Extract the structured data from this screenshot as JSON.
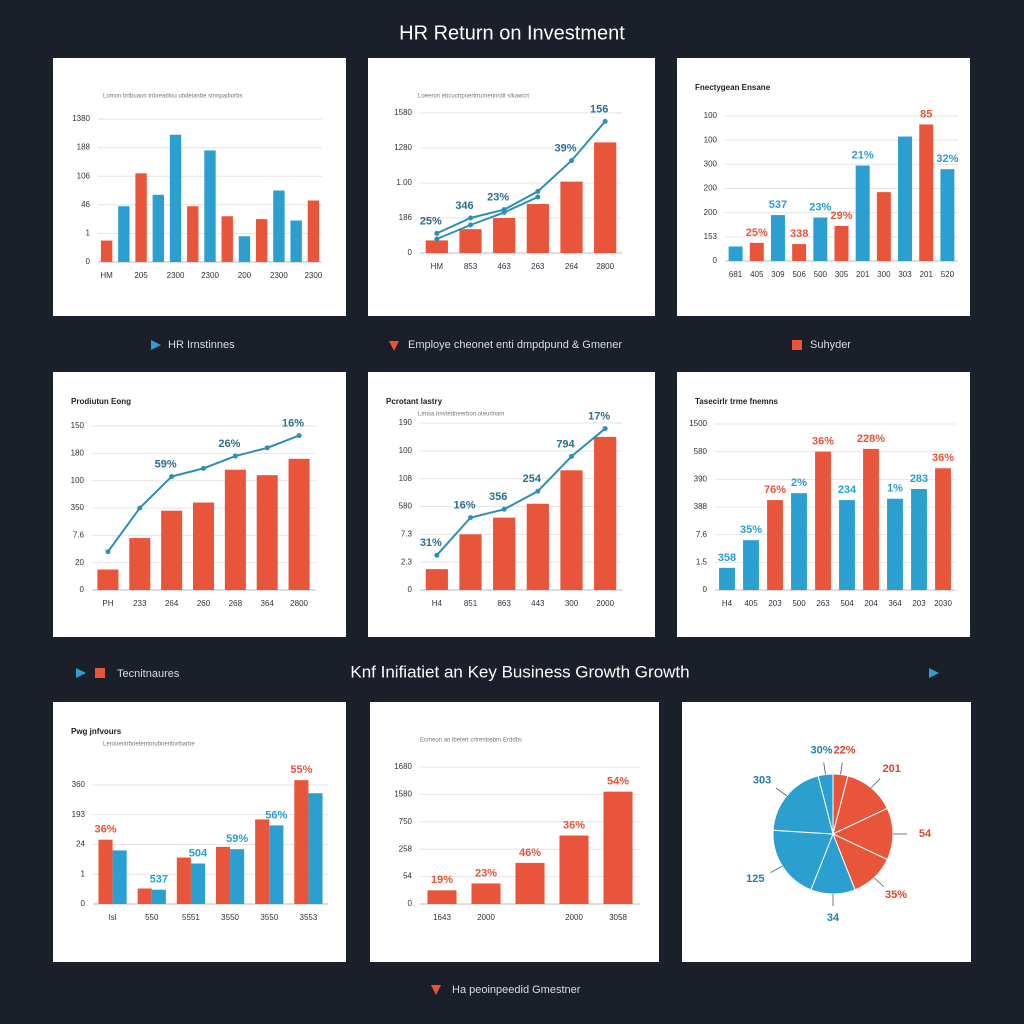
{
  "page": {
    "title": "HR Return on Investment",
    "section_title": "Knf Inifiatiet an Key Business Growth Growth",
    "captions": [
      "HR Irnstinnes",
      "Employe cheonet enti dmpdpund & Gmener",
      "Suhyder",
      "Tecnitnaures",
      "Ha peoinpeedid Gmestner"
    ]
  },
  "chart_data": [
    {
      "type": "bar",
      "subtitle": "Lomon brtbuaon tnbreadiou ubdelanbe stnnpadiorbs",
      "categories": [
        "HM",
        null,
        "205",
        null,
        "2300",
        null,
        "2300",
        null,
        "200",
        null,
        "2300",
        null,
        "2300"
      ],
      "series": [
        {
          "type": "bar",
          "colors": [
            "#e8553a",
            "#2a9fd0",
            "#e8553a",
            "#2a9fd0",
            "#2a9fd0",
            "#e8553a",
            "#2a9fd0",
            "#e8553a",
            "#2a9fd0",
            "#e8553a",
            "#2a9fd0",
            "#2a9fd0",
            "#e8553a"
          ],
          "values": [
            15,
            39,
            62,
            47,
            89,
            39,
            78,
            32,
            18,
            30,
            50,
            29,
            43
          ]
        }
      ],
      "ylim": [
        0,
        100
      ],
      "yticks": [
        0,
        {
          "value": 20,
          "label": "1"
        },
        {
          "value": 40,
          "label": "46"
        },
        {
          "value": 60,
          "label": "106"
        },
        {
          "value": 80,
          "label": "188"
        },
        {
          "value": 100,
          "label": "1380"
        }
      ],
      "grid": true
    },
    {
      "type": "bar",
      "subtitle": "Loeeron ebcuonpnertrrumennrdit slkawcrt",
      "categories": [
        "HM",
        "853",
        "463",
        "263",
        "264",
        "2800"
      ],
      "series": [
        {
          "type": "bar",
          "color": "#e8553a",
          "values": [
            9,
            17,
            25,
            35,
            51,
            79
          ]
        },
        {
          "type": "line",
          "color": "#2d8fb5",
          "values": [
            14,
            25,
            31,
            44,
            66,
            94
          ],
          "annotations": [
            "25%",
            "346",
            "23%",
            null,
            "39%",
            "156"
          ]
        },
        {
          "type": "line",
          "color": "#2d8fb5",
          "values": [
            10,
            20,
            29,
            40,
            null,
            null
          ]
        }
      ],
      "ylim": [
        0,
        110
      ],
      "yticks": [
        0,
        {
          "value": 25,
          "label": "186"
        },
        {
          "value": 50,
          "label": "1.00"
        },
        {
          "value": 75,
          "label": "1280"
        },
        {
          "value": 100,
          "label": "1580"
        }
      ],
      "grid": true
    },
    {
      "type": "bar",
      "title": "Fnectygean Ensane",
      "categories": [
        "681",
        "405",
        "309",
        "506",
        "500",
        "305",
        "201",
        "300",
        "303",
        "201",
        "520"
      ],
      "series": [
        {
          "type": "bar",
          "colors": [
            "#2a9fd0",
            "#e8553a",
            "#2a9fd0",
            "#e8553a",
            "#2a9fd0",
            "#e8553a",
            "#2a9fd0",
            "#e8553a",
            "#2a9fd0",
            "#e8553a",
            "#2a9fd0"
          ],
          "values": [
            12,
            15,
            38,
            14,
            36,
            29,
            79,
            57,
            103,
            113,
            76
          ],
          "annotations": [
            null,
            "25%",
            "537",
            "338",
            "23%",
            "29%",
            "21%",
            null,
            null,
            "85",
            "32%"
          ]
        }
      ],
      "ylim": [
        0,
        120
      ],
      "yticks": [
        0,
        {
          "value": 20,
          "label": "153"
        },
        {
          "value": 40,
          "label": "200"
        },
        {
          "value": 60,
          "label": "200"
        },
        {
          "value": 80,
          "label": "300"
        },
        {
          "value": 100,
          "label": "100"
        },
        {
          "value": 120,
          "label": "100"
        }
      ],
      "grid": true
    },
    {
      "type": "bar",
      "title": "Prodiutun Eong",
      "categories": [
        "PH",
        "233",
        "264",
        "260",
        "268",
        "364",
        "2800"
      ],
      "series": [
        {
          "type": "bar",
          "color": "#e8553a",
          "values": [
            15,
            38,
            58,
            64,
            88,
            84,
            96
          ]
        },
        {
          "type": "line",
          "color": "#2d8fb5",
          "values": [
            28,
            60,
            83,
            89,
            98,
            104,
            113
          ],
          "annotations": [
            null,
            null,
            "59%",
            null,
            "26%",
            null,
            "16%"
          ]
        }
      ],
      "ylim": [
        0,
        120
      ],
      "yticks": [
        0,
        20,
        {
          "value": 40,
          "label": "7.6"
        },
        {
          "value": 60,
          "label": "350"
        },
        {
          "value": 80,
          "label": "100"
        },
        {
          "value": 100,
          "label": "180"
        },
        {
          "value": 120,
          "label": "150"
        }
      ],
      "grid": true
    },
    {
      "type": "bar",
      "title": "Pcrotant lastry",
      "subtitle": "Lensa hnvtedneerbon oteurlnam",
      "categories": [
        "H4",
        "851",
        "863",
        "443",
        "300",
        "2000"
      ],
      "series": [
        {
          "type": "bar",
          "color": "#e8553a",
          "values": [
            15,
            40,
            52,
            62,
            86,
            110
          ]
        },
        {
          "type": "line",
          "color": "#2d8fb5",
          "values": [
            25,
            52,
            58,
            71,
            96,
            116
          ],
          "annotations": [
            "31%",
            "16%",
            "356",
            "254",
            "794",
            "17%"
          ]
        }
      ],
      "ylim": [
        0,
        120
      ],
      "yticks": [
        0,
        {
          "value": 20,
          "label": "2.3"
        },
        {
          "value": 40,
          "label": "7.3"
        },
        {
          "value": 60,
          "label": "580"
        },
        {
          "value": 80,
          "label": "108"
        },
        {
          "value": 100,
          "label": "100"
        },
        {
          "value": 120,
          "label": "190"
        }
      ],
      "grid": true
    },
    {
      "type": "bar",
      "title": "Tasecirlr trme fnemns",
      "categories": [
        "H4",
        "405",
        "203",
        "500",
        "263",
        "504",
        "204",
        "364",
        "203",
        "2030"
      ],
      "series": [
        {
          "type": "bar",
          "colors": [
            "#2a9fd0",
            "#2a9fd0",
            "#e8553a",
            "#2a9fd0",
            "#e8553a",
            "#2a9fd0",
            "#e8553a",
            "#2a9fd0",
            "#2a9fd0",
            "#e8553a"
          ],
          "values": [
            16,
            36,
            65,
            70,
            100,
            65,
            102,
            66,
            73,
            88
          ],
          "annotations": [
            "358",
            "35%",
            "76%",
            "2%",
            "36%",
            "234",
            "228%",
            "1%",
            "283",
            "36%"
          ]
        }
      ],
      "ylim": [
        0,
        120
      ],
      "yticks": [
        0,
        {
          "value": 20,
          "label": "1.5"
        },
        {
          "value": 40,
          "label": "7.6"
        },
        {
          "value": 60,
          "label": "388"
        },
        {
          "value": 80,
          "label": "390"
        },
        {
          "value": 100,
          "label": "580"
        },
        {
          "value": 120,
          "label": "1500"
        }
      ],
      "grid": true
    },
    {
      "type": "bar",
      "title": "Pwg jnfvours",
      "subtitle": "Lerouentrboeterriorubnenbvrbarbe",
      "categories": [
        "Isl",
        "550",
        "5551",
        "3550",
        "3550",
        "3553"
      ],
      "series": [
        {
          "type": "bar",
          "color": "#e8553a",
          "values": [
            54,
            13,
            39,
            48,
            71,
            104
          ],
          "annotations": [
            "36%",
            null,
            null,
            null,
            null,
            "55%"
          ]
        },
        {
          "type": "bar",
          "color": "#2a9fd0",
          "values": [
            45,
            12,
            34,
            46,
            66,
            93
          ],
          "annotations": [
            null,
            "537",
            "504",
            "59%",
            "56%",
            null
          ]
        }
      ],
      "ylim": [
        0,
        110
      ],
      "yticks": [
        0,
        {
          "value": 25,
          "label": "1"
        },
        {
          "value": 50,
          "label": "24"
        },
        {
          "value": 75,
          "label": "193"
        },
        {
          "value": 100,
          "label": "360"
        }
      ],
      "grid": true
    },
    {
      "type": "bar",
      "subtitle": "Ecmeon an lbetert crtrentrebrn Erddbs",
      "categories": [
        "1643",
        "2000",
        null,
        "2000",
        "3058"
      ],
      "series": [
        {
          "type": "bar",
          "color": "#e8553a",
          "values": [
            10,
            15,
            30,
            50,
            82
          ],
          "annotations": [
            "19%",
            "23%",
            "46%",
            "36%",
            "54%"
          ]
        }
      ],
      "ylim": [
        0,
        100
      ],
      "yticks": [
        0,
        {
          "value": 20,
          "label": "54"
        },
        {
          "value": 40,
          "label": "258"
        },
        {
          "value": 60,
          "label": "750"
        },
        {
          "value": 80,
          "label": "1580"
        },
        {
          "value": 100,
          "label": "1680"
        }
      ],
      "grid": true
    },
    {
      "type": "pie",
      "values": [
        4,
        4,
        14,
        14,
        12,
        12,
        20,
        20
      ],
      "colors": [
        "#2a9fd0",
        "#e8553a",
        "#e8553a",
        "#e8553a",
        "#e8553a",
        "#2a9fd0",
        "#2a9fd0",
        "#2a9fd0"
      ],
      "annotations": [
        "30%",
        "22%",
        "201",
        "54",
        "35%",
        "34",
        "125",
        "303"
      ]
    }
  ]
}
